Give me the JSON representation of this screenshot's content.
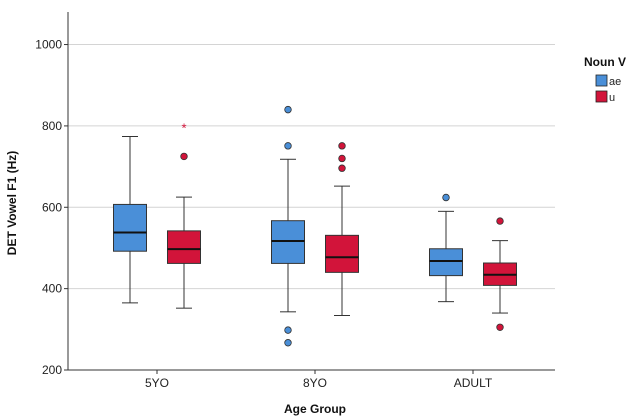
{
  "chart_data": {
    "type": "boxplot",
    "xlabel": "Age Group",
    "ylabel": "DET Vowel F1 (Hz)",
    "ylim": [
      200,
      1080
    ],
    "yticks": [
      200,
      400,
      600,
      800,
      1000
    ],
    "grid": true,
    "legend": {
      "title": "Noun V",
      "position": "right"
    },
    "categories": [
      "5YO",
      "8YO",
      "ADULT"
    ],
    "series": [
      {
        "name": "ae",
        "color": "#4a8fd8",
        "boxes": [
          {
            "category": "5YO",
            "whisker_low": 365,
            "q1": 492,
            "median": 538,
            "q3": 607,
            "whisker_high": 774,
            "outliers": [],
            "extremes": []
          },
          {
            "category": "8YO",
            "whisker_low": 343,
            "q1": 462,
            "median": 517,
            "q3": 567,
            "whisker_high": 718,
            "outliers": [
              840,
              751,
              298,
              267
            ],
            "extremes": []
          },
          {
            "category": "ADULT",
            "whisker_low": 368,
            "q1": 432,
            "median": 468,
            "q3": 498,
            "whisker_high": 590,
            "outliers": [
              624
            ],
            "extremes": []
          }
        ]
      },
      {
        "name": "u",
        "color": "#d2143a",
        "boxes": [
          {
            "category": "5YO",
            "whisker_low": 352,
            "q1": 462,
            "median": 497,
            "q3": 542,
            "whisker_high": 625,
            "outliers": [
              725
            ],
            "extremes": [
              796
            ]
          },
          {
            "category": "8YO",
            "whisker_low": 334,
            "q1": 440,
            "median": 477,
            "q3": 531,
            "whisker_high": 652,
            "outliers": [
              751,
              720,
              696
            ],
            "extremes": []
          },
          {
            "category": "ADULT",
            "whisker_low": 340,
            "q1": 408,
            "median": 434,
            "q3": 463,
            "whisker_high": 518,
            "outliers": [
              566,
              305
            ],
            "extremes": []
          }
        ]
      }
    ]
  }
}
